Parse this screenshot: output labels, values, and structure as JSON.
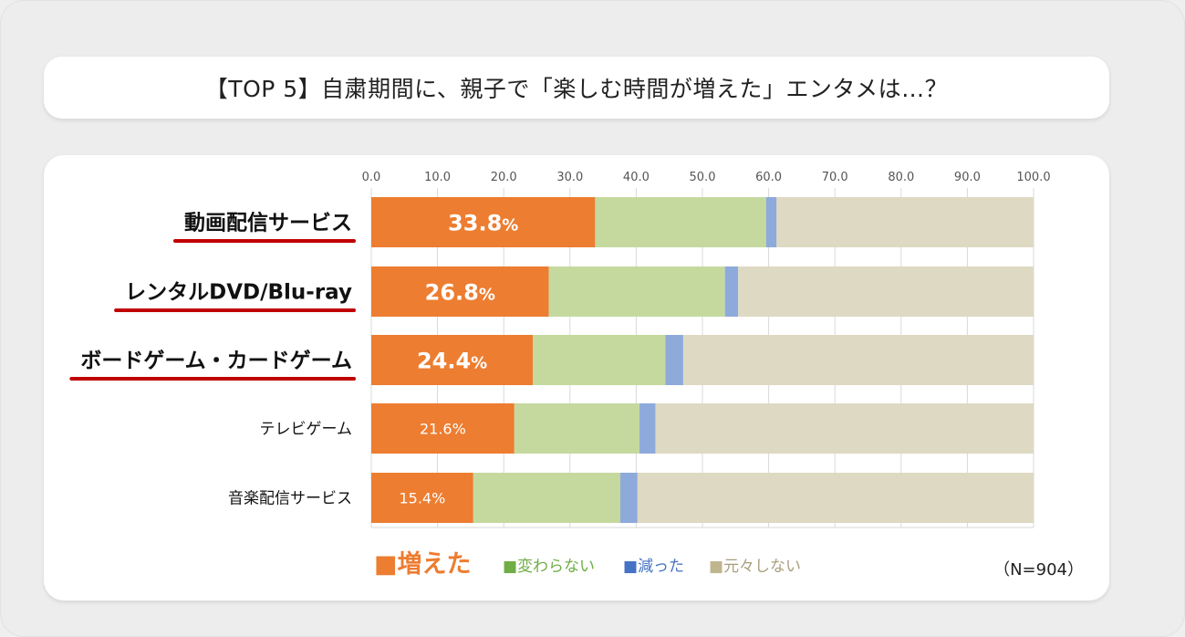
{
  "title": "【TOP 5】自粛期間に、親子で「楽しむ時間が増えた」エンタメは…？",
  "sample_note": "（N=904）",
  "colors": {
    "increased": "#ed7d31",
    "unchanged": "#c5d99f",
    "decreased": "#8eaadb",
    "not_done": "#ded9c3",
    "underline": "#c00000"
  },
  "legend": [
    {
      "key": "increased",
      "label": "■増えた",
      "color": "#ed7d31"
    },
    {
      "key": "unchanged",
      "label": "■変わらない",
      "color": "#70ad47"
    },
    {
      "key": "decreased",
      "label": "■減った",
      "color": "#4472c4"
    },
    {
      "key": "not_done",
      "label": "■元々しない",
      "color": "#bfb58f"
    }
  ],
  "chart_data": {
    "type": "bar",
    "orientation": "horizontal",
    "stacked": true,
    "xlim": [
      0,
      100
    ],
    "xticks": [
      "0.0",
      "10.0",
      "20.0",
      "30.0",
      "40.0",
      "50.0",
      "60.0",
      "70.0",
      "80.0",
      "90.0",
      "100.0"
    ],
    "categories": [
      "動画配信サービス",
      "レンタルDVD/Blu-ray",
      "ボードゲーム・カードゲーム",
      "テレビゲーム",
      "音楽配信サービス"
    ],
    "highlighted": [
      true,
      true,
      true,
      false,
      false
    ],
    "series": [
      {
        "name": "増えた",
        "values": [
          33.8,
          26.8,
          24.4,
          21.6,
          15.4
        ]
      },
      {
        "name": "変わらない",
        "values": [
          25.8,
          26.6,
          20.0,
          18.9,
          22.2
        ]
      },
      {
        "name": "減った",
        "values": [
          1.6,
          2.0,
          2.7,
          2.4,
          2.6
        ]
      },
      {
        "name": "元々しない",
        "values": [
          38.8,
          44.6,
          52.9,
          57.1,
          59.8
        ]
      }
    ],
    "data_labels": [
      {
        "value": "33.8",
        "unit": "%"
      },
      {
        "value": "26.8",
        "unit": "%"
      },
      {
        "value": "24.4",
        "unit": "%"
      },
      {
        "value": "21.6%",
        "unit": ""
      },
      {
        "value": "15.4%",
        "unit": ""
      }
    ]
  }
}
